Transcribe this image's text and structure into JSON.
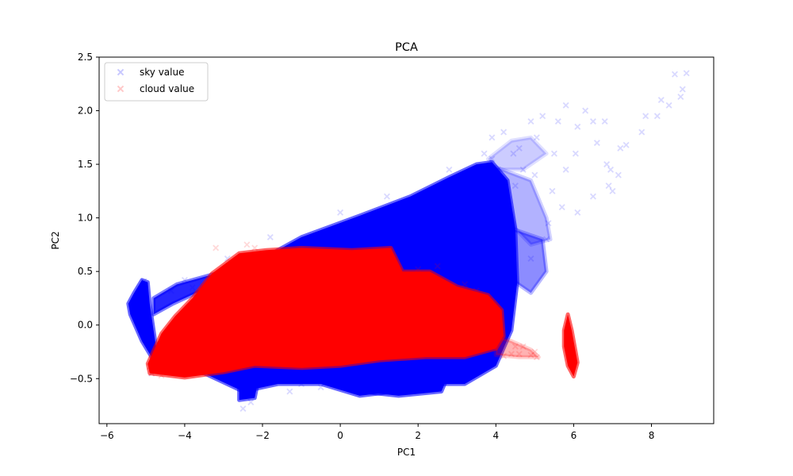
{
  "chart_data": {
    "type": "scatter",
    "title": "PCA",
    "xlabel": "PC1",
    "ylabel": "PC2",
    "xlim": [
      -6.2,
      9.6
    ],
    "ylim": [
      -0.92,
      2.5
    ],
    "xticks": [
      -6,
      -4,
      -2,
      0,
      2,
      4,
      6,
      8
    ],
    "xtick_labels": [
      "−6",
      "−4",
      "−2",
      "0",
      "2",
      "4",
      "6",
      "8"
    ],
    "yticks": [
      -0.5,
      0.0,
      0.5,
      1.0,
      1.5,
      2.0,
      2.5
    ],
    "ytick_labels": [
      "−0.5",
      "0.0",
      "0.5",
      "1.0",
      "1.5",
      "2.0",
      "2.5"
    ],
    "grid": false,
    "legend_position": "upper-left",
    "marker": "X",
    "series": [
      {
        "name": "sky value",
        "color": "#0000ff",
        "alpha": 0.15,
        "points": [
          [
            8.9,
            2.35
          ],
          [
            8.6,
            2.34
          ],
          [
            8.8,
            2.2
          ],
          [
            8.75,
            2.13
          ],
          [
            8.45,
            2.05
          ],
          [
            8.15,
            1.95
          ],
          [
            8.25,
            2.1
          ],
          [
            7.85,
            1.95
          ],
          [
            7.75,
            1.8
          ],
          [
            7.35,
            1.68
          ],
          [
            6.95,
            1.45
          ],
          [
            6.6,
            1.7
          ],
          [
            6.9,
            1.3
          ],
          [
            7.0,
            1.25
          ],
          [
            7.15,
            1.4
          ],
          [
            6.5,
            1.9
          ],
          [
            6.3,
            2.0
          ],
          [
            5.8,
            2.05
          ],
          [
            6.1,
            1.85
          ],
          [
            5.5,
            1.6
          ],
          [
            5.2,
            1.95
          ],
          [
            4.9,
            1.9
          ],
          [
            4.6,
            1.65
          ],
          [
            5.6,
            1.9
          ],
          [
            6.8,
            1.9
          ],
          [
            7.2,
            1.65
          ],
          [
            5.0,
            1.4
          ],
          [
            5.7,
            1.1
          ],
          [
            5.35,
            0.95
          ],
          [
            4.9,
            0.62
          ],
          [
            5.3,
            0.8
          ],
          [
            6.1,
            1.05
          ],
          [
            6.5,
            1.2
          ],
          [
            6.85,
            1.5
          ],
          [
            4.45,
            1.6
          ],
          [
            3.9,
            1.55
          ],
          [
            5.8,
            1.45
          ],
          [
            6.05,
            1.6
          ],
          [
            4.7,
            1.45
          ],
          [
            5.45,
            1.25
          ],
          [
            -5.05,
            0.41
          ],
          [
            -4.35,
            0.32
          ],
          [
            -4.0,
            0.42
          ],
          [
            -3.8,
            0.35
          ],
          [
            -2.9,
            0.62
          ],
          [
            -1.8,
            0.82
          ],
          [
            0.0,
            1.05
          ],
          [
            1.2,
            1.2
          ],
          [
            -2.5,
            -0.78
          ],
          [
            -2.3,
            -0.72
          ],
          [
            -1.3,
            -0.62
          ],
          [
            -4.85,
            -0.45
          ],
          [
            -1.0,
            -0.55
          ],
          [
            -0.5,
            -0.58
          ],
          [
            3.7,
            1.6
          ],
          [
            3.9,
            1.75
          ],
          [
            4.2,
            1.8
          ],
          [
            4.05,
            1.45
          ],
          [
            3.2,
            1.3
          ],
          [
            2.8,
            1.45
          ],
          [
            5.05,
            1.75
          ],
          [
            4.5,
            1.3
          ]
        ],
        "dense_regions": [
          {
            "polygon": [
              [
                -4.5,
                -0.38
              ],
              [
                -3.8,
                0.2
              ],
              [
                -2.5,
                0.52
              ],
              [
                -1.0,
                0.82
              ],
              [
                0.5,
                1.02
              ],
              [
                1.8,
                1.2
              ],
              [
                2.8,
                1.38
              ],
              [
                3.5,
                1.5
              ],
              [
                3.9,
                1.52
              ],
              [
                4.3,
                1.35
              ],
              [
                4.5,
                0.9
              ],
              [
                4.55,
                0.4
              ],
              [
                4.4,
                -0.05
              ],
              [
                4.0,
                -0.38
              ],
              [
                3.2,
                -0.55
              ],
              [
                2.3,
                -0.55
              ],
              [
                1.4,
                -0.62
              ],
              [
                0.5,
                -0.66
              ],
              [
                -0.5,
                -0.55
              ],
              [
                -1.6,
                -0.55
              ],
              [
                -2.5,
                -0.62
              ],
              [
                -3.5,
                -0.45
              ],
              [
                -4.4,
                -0.42
              ]
            ],
            "opacity": 1.0
          },
          {
            "polygon": [
              [
                -5.45,
                0.2
              ],
              [
                -5.3,
                0.3
              ],
              [
                -5.1,
                0.42
              ],
              [
                -4.95,
                0.4
              ],
              [
                -4.9,
                0.2
              ],
              [
                -4.8,
                -0.05
              ],
              [
                -4.7,
                -0.3
              ],
              [
                -4.85,
                -0.3
              ],
              [
                -5.1,
                -0.15
              ],
              [
                -5.4,
                0.1
              ]
            ],
            "opacity": 1.0
          },
          {
            "polygon": [
              [
                -4.8,
                0.25
              ],
              [
                -4.2,
                0.38
              ],
              [
                -3.5,
                0.45
              ],
              [
                -3.0,
                0.5
              ],
              [
                -3.4,
                0.35
              ],
              [
                -4.3,
                0.2
              ],
              [
                -4.8,
                0.1
              ]
            ],
            "opacity": 0.85
          },
          {
            "polygon": [
              [
                -2.6,
                -0.5
              ],
              [
                -2.1,
                -0.5
              ],
              [
                -2.2,
                -0.68
              ],
              [
                -2.6,
                -0.7
              ]
            ],
            "opacity": 1.0
          },
          {
            "polygon": [
              [
                0.5,
                -0.45
              ],
              [
                2.8,
                -0.45
              ],
              [
                2.6,
                -0.62
              ],
              [
                1.5,
                -0.66
              ],
              [
                0.5,
                -0.62
              ]
            ],
            "opacity": 1.0
          },
          {
            "polygon": [
              [
                3.8,
                1.5
              ],
              [
                4.9,
                1.35
              ],
              [
                5.3,
                1.0
              ],
              [
                5.4,
                0.8
              ],
              [
                4.9,
                0.75
              ],
              [
                4.5,
                0.9
              ],
              [
                4.2,
                1.3
              ]
            ],
            "opacity": 0.3
          },
          {
            "polygon": [
              [
                4.4,
                0.9
              ],
              [
                5.2,
                0.8
              ],
              [
                5.3,
                0.5
              ],
              [
                4.9,
                0.3
              ],
              [
                4.5,
                0.4
              ]
            ],
            "opacity": 0.45
          },
          {
            "polygon": [
              [
                3.8,
                1.55
              ],
              [
                4.4,
                1.72
              ],
              [
                4.9,
                1.75
              ],
              [
                5.3,
                1.6
              ],
              [
                4.7,
                1.45
              ],
              [
                4.0,
                1.45
              ]
            ],
            "opacity": 0.2
          }
        ]
      },
      {
        "name": "cloud value",
        "color": "#ff0000",
        "alpha": 0.15,
        "points": [
          [
            5.0,
            -0.25
          ],
          [
            4.9,
            -0.28
          ],
          [
            4.7,
            -0.2
          ],
          [
            4.5,
            -0.2
          ],
          [
            5.05,
            -0.3
          ],
          [
            4.4,
            -0.27
          ],
          [
            4.2,
            -0.29
          ],
          [
            4.6,
            -0.27
          ],
          [
            -4.85,
            -0.45
          ],
          [
            -4.9,
            -0.39
          ],
          [
            -4.6,
            -0.47
          ],
          [
            -4.75,
            -0.43
          ],
          [
            -3.2,
            0.72
          ],
          [
            -2.4,
            0.75
          ],
          [
            -1.5,
            0.65
          ],
          [
            2.0,
            0.52
          ],
          [
            2.5,
            0.55
          ],
          [
            3.2,
            0.38
          ],
          [
            3.5,
            0.32
          ],
          [
            -2.2,
            0.72
          ]
        ],
        "dense_regions": [
          {
            "polygon": [
              [
                -4.95,
                -0.36
              ],
              [
                -4.6,
                -0.08
              ],
              [
                -4.25,
                0.08
              ],
              [
                -3.8,
                0.25
              ],
              [
                -3.3,
                0.48
              ],
              [
                -2.6,
                0.67
              ],
              [
                -1.9,
                0.7
              ],
              [
                -1.0,
                0.72
              ],
              [
                0.3,
                0.7
              ],
              [
                1.3,
                0.72
              ],
              [
                1.6,
                0.5
              ],
              [
                2.3,
                0.5
              ],
              [
                3.0,
                0.36
              ],
              [
                3.8,
                0.28
              ],
              [
                4.15,
                0.14
              ],
              [
                4.2,
                -0.1
              ],
              [
                4.0,
                -0.22
              ],
              [
                3.2,
                -0.3
              ],
              [
                2.2,
                -0.3
              ],
              [
                1.0,
                -0.33
              ],
              [
                0.0,
                -0.38
              ],
              [
                -1.0,
                -0.4
              ],
              [
                -2.2,
                -0.38
              ],
              [
                -3.0,
                -0.44
              ],
              [
                -4.0,
                -0.49
              ],
              [
                -4.9,
                -0.45
              ]
            ],
            "opacity": 1.0
          },
          {
            "polygon": [
              [
                5.75,
                -0.05
              ],
              [
                5.85,
                0.1
              ],
              [
                5.95,
                -0.05
              ],
              [
                6.05,
                -0.25
              ],
              [
                6.1,
                -0.35
              ],
              [
                6.0,
                -0.48
              ],
              [
                5.85,
                -0.38
              ],
              [
                5.75,
                -0.2
              ]
            ],
            "opacity": 1.0
          },
          {
            "polygon": [
              [
                4.0,
                -0.1
              ],
              [
                4.4,
                -0.15
              ],
              [
                4.9,
                -0.23
              ],
              [
                5.1,
                -0.3
              ],
              [
                4.6,
                -0.3
              ],
              [
                4.0,
                -0.28
              ]
            ],
            "opacity": 0.3
          }
        ]
      }
    ]
  }
}
